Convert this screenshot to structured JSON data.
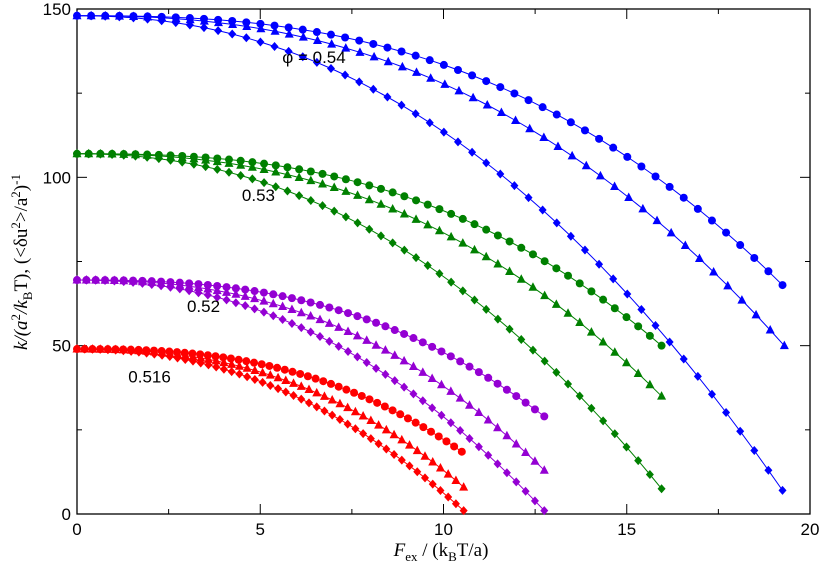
{
  "chart_data": {
    "type": "scatter",
    "xlabel": {
      "main": "F",
      "sub1": "ex",
      "rest1": " / (k",
      "sub2": "B",
      "rest2": "T/a)"
    },
    "ylabel": {
      "p1": "k/(a",
      "sup1": "2",
      "p2": "/k",
      "sub1": "B",
      "p3": "T),  (<δu",
      "sup2": "2",
      "p4": ">/a",
      "sup3": "2",
      "p5": ")",
      "sup4": "-1"
    },
    "xlim": [
      0,
      20
    ],
    "ylim": [
      0,
      150
    ],
    "x_ticks": [
      0,
      5,
      10,
      15,
      20
    ],
    "y_ticks": [
      0,
      50,
      100,
      150
    ],
    "x_tick_labels": [
      "0",
      "5",
      "10",
      "15",
      "20"
    ],
    "y_tick_labels": [
      "0",
      "50",
      "100",
      "150"
    ],
    "annotations": [
      {
        "text": "φ = 0.54",
        "x": 5.6,
        "y": 134
      },
      {
        "text": "0.53",
        "x": 4.5,
        "y": 93
      },
      {
        "text": "0.52",
        "x": 3.0,
        "y": 60
      },
      {
        "text": "0.516",
        "x": 1.4,
        "y": 39
      }
    ],
    "groups": [
      {
        "phi": "0.54",
        "color": "#0000ff",
        "k0": 148,
        "series": [
          {
            "marker": "circle",
            "xmax": 19.25,
            "yend": 68
          },
          {
            "marker": "triangle",
            "xmax": 19.3,
            "yend": 50
          },
          {
            "marker": "diamond",
            "xmax": 19.25,
            "yend": 7
          }
        ]
      },
      {
        "phi": "0.53",
        "color": "#008000",
        "k0": 107,
        "series": [
          {
            "marker": "circle",
            "xmax": 15.95,
            "yend": 50
          },
          {
            "marker": "triangle",
            "xmax": 15.95,
            "yend": 35
          },
          {
            "marker": "diamond",
            "xmax": 15.95,
            "yend": 7.5
          }
        ]
      },
      {
        "phi": "0.52",
        "color": "#9400d3",
        "k0": 69.5,
        "series": [
          {
            "marker": "circle",
            "xmax": 12.75,
            "yend": 29
          },
          {
            "marker": "triangle",
            "xmax": 12.75,
            "yend": 13
          },
          {
            "marker": "diamond",
            "xmax": 12.75,
            "yend": 1
          }
        ]
      },
      {
        "phi": "0.516",
        "color": "#ff0000",
        "k0": 49,
        "series": [
          {
            "marker": "circle",
            "xmax": 10.5,
            "yend": 18.5
          },
          {
            "marker": "triangle",
            "xmax": 10.55,
            "yend": 8
          },
          {
            "marker": "diamond",
            "xmax": 10.55,
            "yend": 1
          }
        ]
      }
    ]
  }
}
